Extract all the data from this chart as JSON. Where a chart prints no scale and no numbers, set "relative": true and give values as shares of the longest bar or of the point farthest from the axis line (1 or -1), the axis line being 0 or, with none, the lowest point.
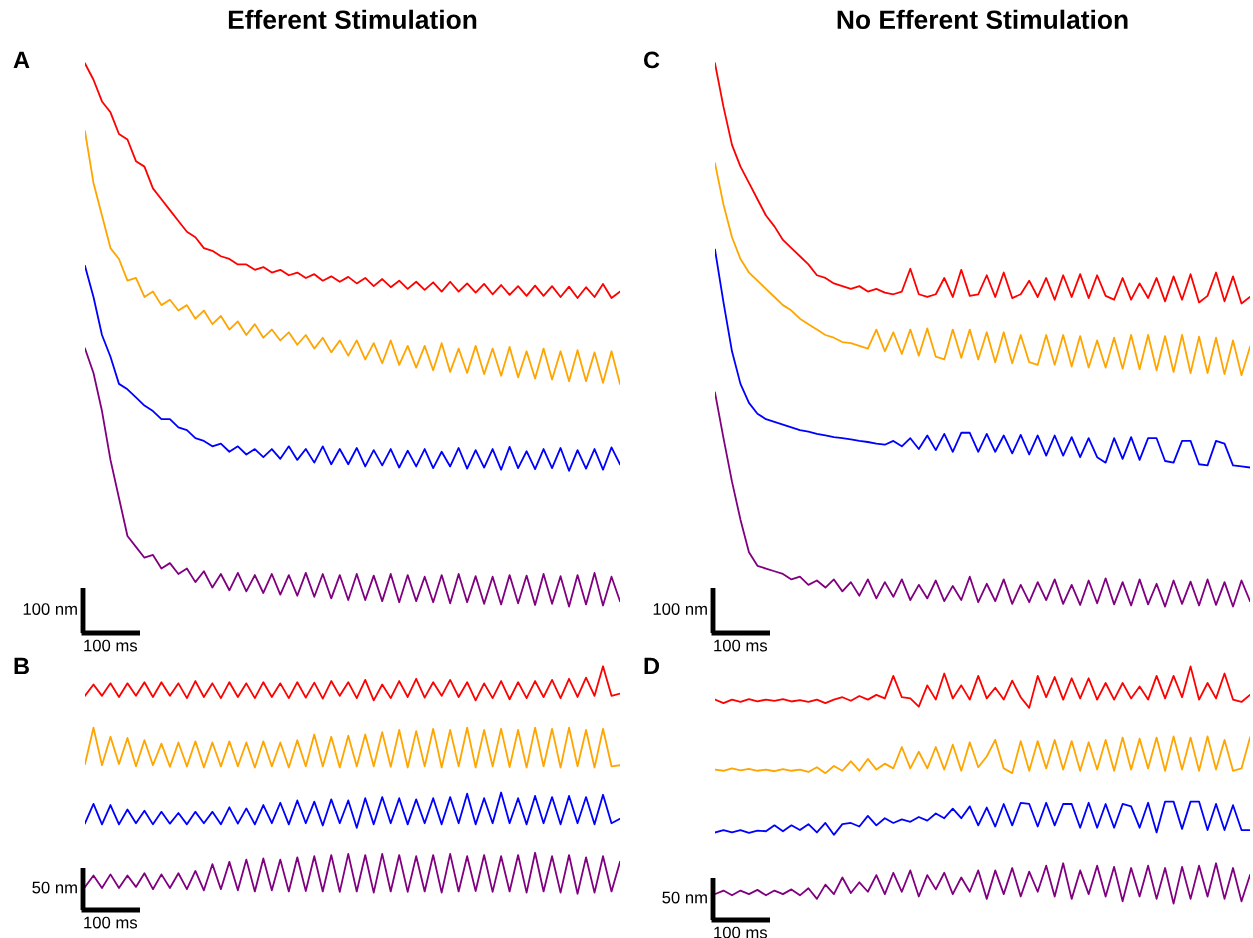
{
  "chart_data": [
    {
      "type": "line",
      "relative": true,
      "title": "Efferent Stimulation",
      "annotations": [
        "A",
        "100 nm",
        "100 ms"
      ],
      "categories": [
        null,
        null,
        null,
        null,
        null,
        null,
        null,
        null,
        null,
        null,
        null,
        null,
        null,
        null,
        null,
        null,
        null,
        null,
        null,
        null,
        null,
        null,
        null,
        null,
        null,
        null,
        null,
        null,
        null,
        null,
        null,
        null,
        null,
        null,
        null,
        null,
        null,
        null,
        null,
        null,
        null,
        null,
        null,
        null,
        null,
        null,
        null,
        null,
        null,
        null,
        null,
        null,
        null,
        null,
        null,
        null,
        null,
        null,
        null,
        null,
        null,
        null,
        null,
        null
      ],
      "series": [
        {
          "color": "#ff0000",
          "values": [
            1.0,
            0.97,
            0.93,
            0.91,
            0.87,
            0.86,
            0.82,
            0.81,
            0.77,
            0.75,
            0.73,
            0.71,
            0.69,
            0.68,
            0.66,
            0.655,
            0.645,
            0.64,
            0.63,
            0.63,
            0.62,
            0.625,
            0.615,
            0.62,
            0.61,
            0.615,
            0.605,
            0.612,
            0.6,
            0.608,
            0.598,
            0.607,
            0.595,
            0.605,
            0.59,
            0.603,
            0.588,
            0.6,
            0.585,
            0.598,
            0.583,
            0.597,
            0.58,
            0.598,
            0.58,
            0.595,
            0.578,
            0.594,
            0.575,
            0.592,
            0.574,
            0.59,
            0.572,
            0.591,
            0.572,
            0.59,
            0.57,
            0.589,
            0.568,
            0.588,
            0.57,
            0.594,
            0.568,
            0.58
          ]
        },
        {
          "color": "#ffa500",
          "values": [
            0.875,
            0.78,
            0.72,
            0.66,
            0.64,
            0.6,
            0.605,
            0.57,
            0.58,
            0.555,
            0.565,
            0.545,
            0.555,
            0.53,
            0.545,
            0.52,
            0.535,
            0.51,
            0.525,
            0.5,
            0.52,
            0.495,
            0.51,
            0.49,
            0.505,
            0.482,
            0.5,
            0.475,
            0.495,
            0.468,
            0.49,
            0.462,
            0.49,
            0.455,
            0.485,
            0.448,
            0.49,
            0.445,
            0.48,
            0.44,
            0.48,
            0.435,
            0.485,
            0.432,
            0.475,
            0.43,
            0.48,
            0.428,
            0.475,
            0.425,
            0.478,
            0.422,
            0.47,
            0.42,
            0.475,
            0.418,
            0.47,
            0.415,
            0.472,
            0.415,
            0.468,
            0.412,
            0.47,
            0.41
          ]
        },
        {
          "color": "#0000ff",
          "values": [
            0.627,
            0.57,
            0.5,
            0.46,
            0.41,
            0.4,
            0.385,
            0.37,
            0.36,
            0.345,
            0.345,
            0.33,
            0.325,
            0.31,
            0.305,
            0.295,
            0.3,
            0.285,
            0.295,
            0.28,
            0.29,
            0.275,
            0.29,
            0.272,
            0.295,
            0.27,
            0.29,
            0.265,
            0.295,
            0.262,
            0.29,
            0.262,
            0.292,
            0.258,
            0.288,
            0.26,
            0.29,
            0.256,
            0.287,
            0.258,
            0.29,
            0.255,
            0.285,
            0.258,
            0.292,
            0.254,
            0.288,
            0.256,
            0.29,
            0.252,
            0.294,
            0.255,
            0.286,
            0.253,
            0.29,
            0.255,
            0.292,
            0.25,
            0.288,
            0.254,
            0.29,
            0.252,
            0.293,
            0.262
          ]
        },
        {
          "color": "#800080",
          "values": [
            0.475,
            0.43,
            0.36,
            0.27,
            0.2,
            0.13,
            0.11,
            0.09,
            0.095,
            0.07,
            0.08,
            0.06,
            0.07,
            0.045,
            0.065,
            0.035,
            0.06,
            0.03,
            0.062,
            0.028,
            0.058,
            0.025,
            0.06,
            0.022,
            0.058,
            0.02,
            0.062,
            0.018,
            0.06,
            0.015,
            0.058,
            0.012,
            0.06,
            0.012,
            0.057,
            0.01,
            0.06,
            0.008,
            0.058,
            0.01,
            0.055,
            0.008,
            0.058,
            0.006,
            0.06,
            0.008,
            0.056,
            0.005,
            0.055,
            0.004,
            0.058,
            0.006,
            0.057,
            0.003,
            0.06,
            0.005,
            0.056,
            0.0,
            0.058,
            0.004,
            0.062,
            0.002,
            0.055,
            0.01
          ]
        }
      ]
    },
    {
      "type": "line",
      "relative": true,
      "title": "No Efferent Stimulation",
      "annotations": [
        "C",
        "100 nm",
        "100 ms"
      ],
      "categories": [
        null,
        null,
        null,
        null,
        null,
        null,
        null,
        null,
        null,
        null,
        null,
        null,
        null,
        null,
        null,
        null,
        null,
        null,
        null,
        null,
        null,
        null,
        null,
        null,
        null,
        null,
        null,
        null,
        null,
        null,
        null,
        null,
        null,
        null,
        null,
        null,
        null,
        null,
        null,
        null,
        null,
        null,
        null,
        null,
        null,
        null,
        null,
        null,
        null,
        null,
        null,
        null,
        null,
        null,
        null,
        null,
        null,
        null,
        null,
        null,
        null,
        null,
        null,
        null
      ],
      "series": [
        {
          "color": "#ff0000",
          "values": [
            1.0,
            0.92,
            0.85,
            0.81,
            0.78,
            0.75,
            0.72,
            0.7,
            0.675,
            0.66,
            0.645,
            0.63,
            0.61,
            0.605,
            0.595,
            0.59,
            0.585,
            0.59,
            0.58,
            0.585,
            0.578,
            0.575,
            0.58,
            0.622,
            0.575,
            0.57,
            0.575,
            0.605,
            0.57,
            0.62,
            0.572,
            0.575,
            0.61,
            0.57,
            0.615,
            0.568,
            0.575,
            0.6,
            0.57,
            0.605,
            0.565,
            0.61,
            0.57,
            0.612,
            0.568,
            0.61,
            0.572,
            0.565,
            0.605,
            0.565,
            0.595,
            0.568,
            0.605,
            0.562,
            0.608,
            0.565,
            0.612,
            0.56,
            0.572,
            0.615,
            0.562,
            0.608,
            0.558,
            0.57
          ]
        },
        {
          "color": "#ffa500",
          "values": [
            0.816,
            0.74,
            0.68,
            0.64,
            0.615,
            0.6,
            0.585,
            0.57,
            0.555,
            0.545,
            0.53,
            0.52,
            0.51,
            0.5,
            0.495,
            0.487,
            0.485,
            0.48,
            0.475,
            0.51,
            0.47,
            0.505,
            0.465,
            0.51,
            0.462,
            0.512,
            0.46,
            0.455,
            0.51,
            0.458,
            0.51,
            0.455,
            0.505,
            0.45,
            0.505,
            0.448,
            0.5,
            0.45,
            0.445,
            0.5,
            0.445,
            0.5,
            0.442,
            0.498,
            0.44,
            0.49,
            0.44,
            0.495,
            0.438,
            0.5,
            0.437,
            0.5,
            0.435,
            0.498,
            0.432,
            0.5,
            0.43,
            0.497,
            0.43,
            0.495,
            0.428,
            0.49,
            0.426,
            0.478
          ]
        },
        {
          "color": "#0000ff",
          "values": [
            0.657,
            0.56,
            0.47,
            0.41,
            0.375,
            0.355,
            0.345,
            0.34,
            0.335,
            0.33,
            0.325,
            0.322,
            0.318,
            0.315,
            0.312,
            0.31,
            0.308,
            0.305,
            0.303,
            0.3,
            0.298,
            0.305,
            0.295,
            0.31,
            0.29,
            0.315,
            0.288,
            0.318,
            0.285,
            0.32,
            0.32,
            0.285,
            0.318,
            0.285,
            0.315,
            0.282,
            0.316,
            0.28,
            0.315,
            0.278,
            0.315,
            0.278,
            0.312,
            0.275,
            0.31,
            0.275,
            0.265,
            0.31,
            0.272,
            0.312,
            0.27,
            0.31,
            0.31,
            0.268,
            0.265,
            0.305,
            0.305,
            0.262,
            0.26,
            0.305,
            0.3,
            0.26,
            0.258,
            0.256
          ]
        },
        {
          "color": "#800080",
          "values": [
            0.394,
            0.31,
            0.23,
            0.16,
            0.1,
            0.075,
            0.07,
            0.065,
            0.06,
            0.05,
            0.055,
            0.04,
            0.048,
            0.035,
            0.05,
            0.028,
            0.045,
            0.02,
            0.05,
            0.015,
            0.045,
            0.018,
            0.05,
            0.012,
            0.04,
            0.015,
            0.048,
            0.01,
            0.038,
            0.012,
            0.055,
            0.008,
            0.042,
            0.01,
            0.05,
            0.005,
            0.04,
            0.008,
            0.045,
            0.012,
            0.05,
            0.005,
            0.04,
            0.003,
            0.048,
            0.006,
            0.052,
            0.004,
            0.045,
            0.002,
            0.05,
            0.004,
            0.042,
            0.0,
            0.048,
            0.005,
            0.046,
            0.002,
            0.05,
            0.003,
            0.045,
            0.0,
            0.048,
            0.01
          ]
        }
      ]
    },
    {
      "type": "line",
      "relative": true,
      "annotations": [
        "B",
        "50 nm",
        "100 ms"
      ],
      "categories": [
        null,
        null,
        null,
        null,
        null,
        null,
        null,
        null,
        null,
        null,
        null,
        null,
        null,
        null,
        null,
        null,
        null,
        null,
        null,
        null,
        null,
        null,
        null,
        null,
        null,
        null,
        null,
        null,
        null,
        null,
        null,
        null,
        null,
        null,
        null,
        null,
        null,
        null,
        null,
        null,
        null,
        null,
        null,
        null,
        null,
        null,
        null,
        null,
        null,
        null,
        null,
        null,
        null,
        null,
        null,
        null,
        null,
        null,
        null,
        null,
        null,
        null,
        null,
        null
      ],
      "series": [
        {
          "color": "#ff0000",
          "values": [
            0.87,
            0.92,
            0.87,
            0.925,
            0.865,
            0.925,
            0.87,
            0.93,
            0.865,
            0.93,
            0.87,
            0.925,
            0.86,
            0.935,
            0.865,
            0.925,
            0.86,
            0.93,
            0.865,
            0.925,
            0.86,
            0.93,
            0.865,
            0.925,
            0.86,
            0.93,
            0.862,
            0.928,
            0.858,
            0.935,
            0.87,
            0.93,
            0.86,
            0.94,
            0.85,
            0.92,
            0.86,
            0.935,
            0.865,
            0.945,
            0.862,
            0.93,
            0.87,
            0.94,
            0.865,
            0.93,
            0.85,
            0.925,
            0.86,
            0.935,
            0.855,
            0.93,
            0.86,
            0.935,
            0.865,
            0.94,
            0.86,
            0.945,
            0.865,
            0.95,
            0.87,
            1.0,
            0.87,
            0.88
          ]
        },
        {
          "color": "#ffa500",
          "values": [
            0.57,
            0.73,
            0.565,
            0.69,
            0.57,
            0.685,
            0.56,
            0.675,
            0.565,
            0.66,
            0.558,
            0.665,
            0.56,
            0.67,
            0.555,
            0.665,
            0.56,
            0.67,
            0.56,
            0.665,
            0.555,
            0.67,
            0.56,
            0.665,
            0.555,
            0.675,
            0.56,
            0.7,
            0.56,
            0.69,
            0.555,
            0.695,
            0.56,
            0.7,
            0.56,
            0.71,
            0.558,
            0.72,
            0.555,
            0.715,
            0.56,
            0.725,
            0.555,
            0.72,
            0.56,
            0.73,
            0.555,
            0.72,
            0.56,
            0.725,
            0.557,
            0.72,
            0.555,
            0.73,
            0.56,
            0.725,
            0.555,
            0.73,
            0.56,
            0.72,
            0.555,
            0.725,
            0.56,
            0.565
          ]
        },
        {
          "color": "#0000ff",
          "values": [
            0.31,
            0.395,
            0.305,
            0.39,
            0.305,
            0.37,
            0.31,
            0.365,
            0.305,
            0.36,
            0.308,
            0.355,
            0.305,
            0.36,
            0.31,
            0.36,
            0.305,
            0.38,
            0.308,
            0.375,
            0.305,
            0.39,
            0.31,
            0.4,
            0.305,
            0.41,
            0.31,
            0.405,
            0.3,
            0.415,
            0.31,
            0.41,
            0.29,
            0.42,
            0.305,
            0.425,
            0.31,
            0.42,
            0.305,
            0.415,
            0.31,
            0.42,
            0.305,
            0.425,
            0.31,
            0.44,
            0.305,
            0.42,
            0.31,
            0.445,
            0.31,
            0.42,
            0.305,
            0.43,
            0.31,
            0.425,
            0.305,
            0.43,
            0.31,
            0.425,
            0.305,
            0.435,
            0.31,
            0.33
          ]
        },
        {
          "color": "#800080",
          "values": [
            0.03,
            0.08,
            0.025,
            0.085,
            0.025,
            0.08,
            0.03,
            0.09,
            0.02,
            0.085,
            0.025,
            0.09,
            0.02,
            0.1,
            0.015,
            0.13,
            0.02,
            0.14,
            0.015,
            0.15,
            0.01,
            0.155,
            0.015,
            0.15,
            0.01,
            0.16,
            0.012,
            0.165,
            0.01,
            0.17,
            0.008,
            0.175,
            0.01,
            0.17,
            0.005,
            0.175,
            0.01,
            0.17,
            0.008,
            0.165,
            0.01,
            0.17,
            0.005,
            0.175,
            0.01,
            0.165,
            0.012,
            0.17,
            0.008,
            0.165,
            0.01,
            0.17,
            0.005,
            0.18,
            0.01,
            0.165,
            0.005,
            0.17,
            0.0,
            0.16,
            0.005,
            0.165,
            0.01,
            0.14
          ]
        }
      ]
    },
    {
      "type": "line",
      "relative": true,
      "annotations": [
        "D",
        "50 nm",
        "100 ms"
      ],
      "categories": [
        null,
        null,
        null,
        null,
        null,
        null,
        null,
        null,
        null,
        null,
        null,
        null,
        null,
        null,
        null,
        null,
        null,
        null,
        null,
        null,
        null,
        null,
        null,
        null,
        null,
        null,
        null,
        null,
        null,
        null,
        null,
        null,
        null,
        null,
        null,
        null,
        null,
        null,
        null,
        null,
        null,
        null,
        null,
        null,
        null,
        null,
        null,
        null,
        null,
        null,
        null,
        null,
        null,
        null,
        null,
        null,
        null,
        null,
        null,
        null,
        null,
        null,
        null,
        null
      ],
      "series": [
        {
          "color": "#ff0000",
          "values": [
            0.86,
            0.845,
            0.86,
            0.85,
            0.862,
            0.852,
            0.86,
            0.855,
            0.862,
            0.852,
            0.858,
            0.85,
            0.86,
            0.845,
            0.86,
            0.87,
            0.855,
            0.875,
            0.86,
            0.88,
            0.865,
            0.96,
            0.87,
            0.865,
            0.83,
            0.92,
            0.86,
            0.97,
            0.865,
            0.92,
            0.86,
            0.96,
            0.865,
            0.91,
            0.86,
            0.94,
            0.87,
            0.825,
            0.96,
            0.87,
            0.955,
            0.86,
            0.95,
            0.865,
            0.95,
            0.86,
            0.93,
            0.86,
            0.93,
            0.865,
            0.915,
            0.86,
            0.96,
            0.865,
            0.96,
            0.87,
            1.0,
            0.86,
            0.93,
            0.865,
            0.97,
            0.86,
            0.85,
            0.88
          ]
        },
        {
          "color": "#ffa500",
          "values": [
            0.565,
            0.56,
            0.57,
            0.562,
            0.568,
            0.56,
            0.565,
            0.558,
            0.567,
            0.56,
            0.565,
            0.555,
            0.575,
            0.55,
            0.58,
            0.56,
            0.6,
            0.56,
            0.61,
            0.565,
            0.59,
            0.57,
            0.66,
            0.57,
            0.64,
            0.57,
            0.66,
            0.565,
            0.67,
            0.56,
            0.68,
            0.575,
            0.62,
            0.69,
            0.57,
            0.55,
            0.685,
            0.56,
            0.685,
            0.57,
            0.69,
            0.565,
            0.685,
            0.56,
            0.68,
            0.565,
            0.69,
            0.56,
            0.7,
            0.565,
            0.695,
            0.57,
            0.7,
            0.56,
            0.705,
            0.565,
            0.7,
            0.56,
            0.705,
            0.565,
            0.69,
            0.56,
            0.57,
            0.7
          ]
        },
        {
          "color": "#0000ff",
          "values": [
            0.3,
            0.31,
            0.3,
            0.31,
            0.298,
            0.308,
            0.305,
            0.33,
            0.305,
            0.33,
            0.31,
            0.335,
            0.3,
            0.34,
            0.29,
            0.335,
            0.34,
            0.325,
            0.37,
            0.33,
            0.36,
            0.34,
            0.355,
            0.345,
            0.365,
            0.35,
            0.38,
            0.36,
            0.4,
            0.36,
            0.41,
            0.33,
            0.405,
            0.325,
            0.42,
            0.33,
            0.425,
            0.42,
            0.325,
            0.425,
            0.33,
            0.42,
            0.42,
            0.32,
            0.425,
            0.32,
            0.42,
            0.32,
            0.42,
            0.41,
            0.32,
            0.425,
            0.3,
            0.43,
            0.43,
            0.315,
            0.43,
            0.43,
            0.31,
            0.42,
            0.31,
            0.415,
            0.31,
            0.31
          ]
        },
        {
          "color": "#800080",
          "values": [
            0.04,
            0.055,
            0.035,
            0.055,
            0.04,
            0.058,
            0.035,
            0.055,
            0.04,
            0.06,
            0.035,
            0.065,
            0.02,
            0.08,
            0.04,
            0.11,
            0.045,
            0.09,
            0.05,
            0.12,
            0.04,
            0.13,
            0.05,
            0.14,
            0.03,
            0.12,
            0.06,
            0.13,
            0.04,
            0.11,
            0.05,
            0.14,
            0.02,
            0.14,
            0.04,
            0.15,
            0.03,
            0.135,
            0.05,
            0.16,
            0.03,
            0.17,
            0.02,
            0.14,
            0.04,
            0.16,
            0.03,
            0.155,
            0.01,
            0.15,
            0.03,
            0.16,
            0.02,
            0.15,
            0.0,
            0.155,
            0.02,
            0.16,
            0.03,
            0.17,
            0.02,
            0.15,
            0.01,
            0.12
          ]
        }
      ]
    }
  ]
}
